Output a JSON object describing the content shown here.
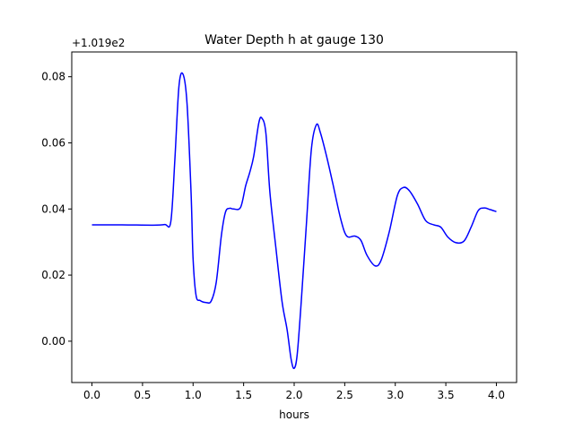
{
  "chart_data": {
    "type": "line",
    "title": "Water Depth h at gauge 130",
    "xlabel": "hours",
    "ylabel": "",
    "offset_label": "+1.019e2",
    "xlim": [
      -0.2,
      4.2
    ],
    "ylim": [
      -0.0125,
      0.0875
    ],
    "x_ticks": [
      0.0,
      0.5,
      1.0,
      1.5,
      2.0,
      2.5,
      3.0,
      3.5,
      4.0
    ],
    "x_tick_labels": [
      "0.0",
      "0.5",
      "1.0",
      "1.5",
      "2.0",
      "2.5",
      "3.0",
      "3.5",
      "4.0"
    ],
    "y_ticks": [
      0.0,
      0.02,
      0.04,
      0.06,
      0.08
    ],
    "y_tick_labels": [
      "0.00",
      "0.02",
      "0.04",
      "0.06",
      "0.08"
    ],
    "grid": false,
    "series": [
      {
        "color": "#0000ff",
        "x": [
          0.0,
          0.3,
          0.6,
          0.72,
          0.78,
          0.82,
          0.86,
          0.9,
          0.94,
          0.98,
          1.0,
          1.03,
          1.07,
          1.13,
          1.18,
          1.23,
          1.28,
          1.32,
          1.36,
          1.4,
          1.47,
          1.52,
          1.56,
          1.6,
          1.65,
          1.68,
          1.72,
          1.76,
          1.82,
          1.88,
          1.93,
          1.97,
          2.0,
          2.03,
          2.07,
          2.12,
          2.17,
          2.22,
          2.26,
          2.32,
          2.38,
          2.46,
          2.52,
          2.6,
          2.66,
          2.72,
          2.8,
          2.86,
          2.94,
          3.02,
          3.08,
          3.14,
          3.22,
          3.3,
          3.38,
          3.45,
          3.52,
          3.6,
          3.68,
          3.75,
          3.82,
          3.88,
          3.94,
          4.0
        ],
        "y": [
          0.0352,
          0.0352,
          0.0351,
          0.0353,
          0.0362,
          0.055,
          0.077,
          0.0808,
          0.072,
          0.045,
          0.025,
          0.0138,
          0.0123,
          0.0117,
          0.0122,
          0.018,
          0.032,
          0.039,
          0.0402,
          0.04,
          0.0405,
          0.047,
          0.051,
          0.056,
          0.066,
          0.0675,
          0.063,
          0.045,
          0.028,
          0.012,
          0.0035,
          -0.0055,
          -0.0082,
          -0.004,
          0.012,
          0.035,
          0.058,
          0.0655,
          0.063,
          0.056,
          0.048,
          0.037,
          0.0318,
          0.0318,
          0.0305,
          0.026,
          0.0228,
          0.0245,
          0.033,
          0.044,
          0.0465,
          0.0455,
          0.0415,
          0.0365,
          0.0352,
          0.0345,
          0.0315,
          0.0298,
          0.0303,
          0.0345,
          0.0395,
          0.0403,
          0.0398,
          0.0392
        ]
      }
    ]
  }
}
